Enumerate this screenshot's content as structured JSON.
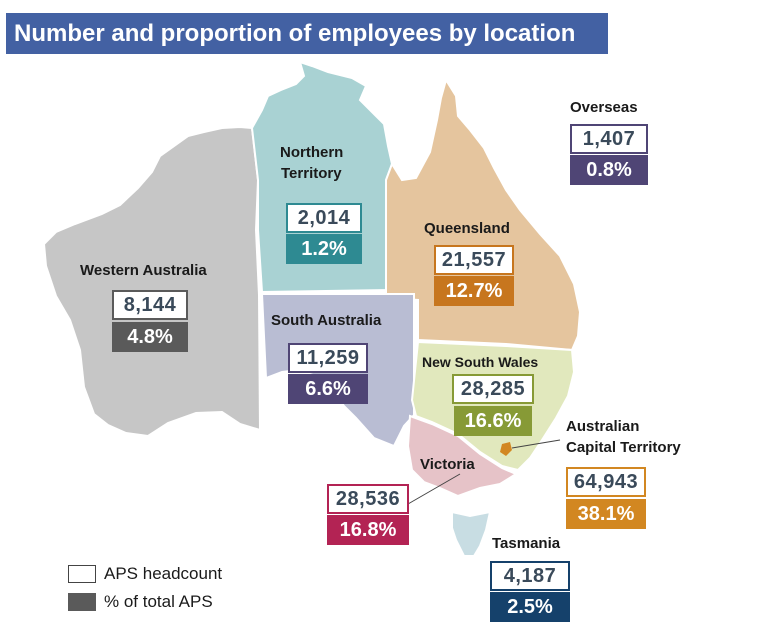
{
  "title": "Number and proportion of employees by location",
  "colors": {
    "title_bg": "#4361a3",
    "wa": "#c6c6c6",
    "wa_accent": "#5a5a5a",
    "nt": "#a9d2d3",
    "nt_accent": "#2e8a92",
    "qld": "#e5c59e",
    "qld_accent": "#c7761e",
    "sa": "#b9bdd3",
    "sa_accent": "#4f4575",
    "nsw": "#e1e8bd",
    "nsw_accent": "#879a36",
    "vic": "#e6c3c8",
    "vic_accent": "#b32354",
    "tas": "#c8dde3",
    "tas_accent": "#15416b",
    "act_accent": "#d28721",
    "overseas_accent": "#4f4575"
  },
  "regions": [
    {
      "id": "wa",
      "name": "Western Australia",
      "headcount": "8,144",
      "percent": "4.8%"
    },
    {
      "id": "nt",
      "name": "Northern\nTerritory",
      "headcount": "2,014",
      "percent": "1.2%"
    },
    {
      "id": "qld",
      "name": "Queensland",
      "headcount": "21,557",
      "percent": "12.7%"
    },
    {
      "id": "sa",
      "name": "South Australia",
      "headcount": "11,259",
      "percent": "6.6%"
    },
    {
      "id": "nsw",
      "name": "New South Wales",
      "headcount": "28,285",
      "percent": "16.6%"
    },
    {
      "id": "act",
      "name": "Australian\nCapital Territory",
      "headcount": "64,943",
      "percent": "38.1%"
    },
    {
      "id": "vic",
      "name": "Victoria",
      "headcount": "28,536",
      "percent": "16.8%"
    },
    {
      "id": "tas",
      "name": "Tasmania",
      "headcount": "4,187",
      "percent": "2.5%"
    },
    {
      "id": "overseas",
      "name": "Overseas",
      "headcount": "1,407",
      "percent": "0.8%"
    }
  ],
  "legend": {
    "headcount_label": "APS headcount",
    "percent_label": "% of total APS"
  }
}
